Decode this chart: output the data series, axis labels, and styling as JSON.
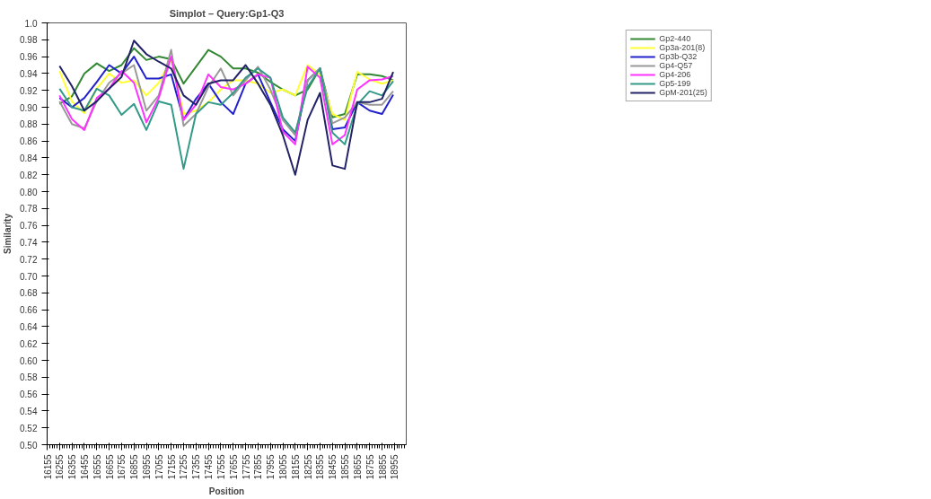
{
  "chart_data": {
    "type": "line",
    "title": "Simplot – Query:Gp1-Q3",
    "xlabel": "Position",
    "ylabel": "Similarity",
    "x": [
      16255,
      16355,
      16455,
      16555,
      16655,
      16755,
      16855,
      16955,
      17055,
      17155,
      17255,
      17355,
      17455,
      17555,
      17655,
      17755,
      17855,
      17955,
      18055,
      18155,
      18255,
      18355,
      18455,
      18555,
      18655,
      18755,
      18855,
      18945
    ],
    "series": [
      {
        "name": "Gp2-440",
        "color": "#338833",
        "values": [
          0.904,
          0.913,
          0.94,
          0.952,
          0.943,
          0.95,
          0.97,
          0.956,
          0.96,
          0.957,
          0.928,
          0.948,
          0.968,
          0.96,
          0.946,
          0.946,
          0.941,
          0.93,
          0.921,
          0.914,
          0.921,
          0.946,
          0.888,
          0.892,
          0.939,
          0.939,
          0.937,
          0.932
        ]
      },
      {
        "name": "Gp3a-201(8)",
        "color": "#ffff33",
        "values": [
          0.943,
          0.907,
          0.893,
          0.922,
          0.94,
          0.929,
          0.932,
          0.914,
          0.929,
          0.957,
          0.892,
          0.896,
          0.906,
          0.921,
          0.932,
          0.932,
          0.928,
          0.917,
          0.921,
          0.914,
          0.95,
          0.939,
          0.892,
          0.885,
          0.942,
          0.933,
          0.928,
          0.932
        ]
      },
      {
        "name": "Gp3b-Q32",
        "color": "#2222cc",
        "values": [
          0.911,
          0.9,
          0.911,
          0.93,
          0.95,
          0.94,
          0.96,
          0.934,
          0.934,
          0.939,
          0.885,
          0.91,
          0.928,
          0.906,
          0.892,
          0.928,
          0.939,
          0.906,
          0.874,
          0.86,
          0.932,
          0.946,
          0.874,
          0.876,
          0.906,
          0.896,
          0.892,
          0.915
        ]
      },
      {
        "name": "Gp4-Q57",
        "color": "#999999",
        "values": [
          0.907,
          0.88,
          0.875,
          0.907,
          0.929,
          0.94,
          0.95,
          0.896,
          0.914,
          0.968,
          0.878,
          0.892,
          0.924,
          0.946,
          0.914,
          0.932,
          0.948,
          0.921,
          0.885,
          0.867,
          0.932,
          0.946,
          0.881,
          0.888,
          0.906,
          0.903,
          0.903,
          0.919
        ]
      },
      {
        "name": "Gp4-206",
        "color": "#ff33ff",
        "values": [
          0.914,
          0.886,
          0.873,
          0.911,
          0.922,
          0.943,
          0.929,
          0.882,
          0.911,
          0.96,
          0.885,
          0.903,
          0.939,
          0.924,
          0.921,
          0.928,
          0.939,
          0.935,
          0.871,
          0.856,
          0.948,
          0.935,
          0.856,
          0.867,
          0.921,
          0.932,
          0.933,
          0.937
        ]
      },
      {
        "name": "Gp5-199",
        "color": "#339988",
        "values": [
          0.922,
          0.9,
          0.896,
          0.922,
          0.914,
          0.891,
          0.904,
          0.873,
          0.907,
          0.903,
          0.827,
          0.892,
          0.906,
          0.903,
          0.917,
          0.935,
          0.946,
          0.935,
          0.888,
          0.87,
          0.924,
          0.946,
          0.87,
          0.856,
          0.903,
          0.919,
          0.914,
          0.931
        ]
      },
      {
        "name": "GpM-201(25)",
        "color": "#222266",
        "values": [
          0.949,
          0.925,
          0.896,
          0.907,
          0.922,
          0.936,
          0.979,
          0.963,
          0.954,
          0.946,
          0.914,
          0.903,
          0.928,
          0.932,
          0.932,
          0.95,
          0.928,
          0.903,
          0.867,
          0.82,
          0.885,
          0.917,
          0.831,
          0.827,
          0.906,
          0.906,
          0.91,
          0.942
        ]
      }
    ],
    "xlim": [
      16155,
      19050
    ],
    "xticks": [
      16155,
      16255,
      16355,
      16455,
      16555,
      16655,
      16755,
      16855,
      16955,
      17055,
      17155,
      17255,
      17355,
      17455,
      17555,
      17655,
      17755,
      17855,
      17955,
      18055,
      18155,
      18255,
      18355,
      18455,
      18555,
      18655,
      18755,
      18855,
      18955
    ],
    "ylim": [
      0.5,
      1.0
    ],
    "yticks": [
      {
        "value": 0.5,
        "label": "0.50"
      },
      {
        "value": 0.52,
        "label": "0.52"
      },
      {
        "value": 0.54,
        "label": "0.54"
      },
      {
        "value": 0.56,
        "label": "0.56"
      },
      {
        "value": 0.58,
        "label": "0.58"
      },
      {
        "value": 0.6,
        "label": "0.60"
      },
      {
        "value": 0.62,
        "label": "0.62"
      },
      {
        "value": 0.64,
        "label": "0.64"
      },
      {
        "value": 0.66,
        "label": "0.66"
      },
      {
        "value": 0.68,
        "label": "0.68"
      },
      {
        "value": 0.7,
        "label": "0.70"
      },
      {
        "value": 0.72,
        "label": "0.72"
      },
      {
        "value": 0.74,
        "label": "0.74"
      },
      {
        "value": 0.76,
        "label": "0.76"
      },
      {
        "value": 0.78,
        "label": "0.78"
      },
      {
        "value": 0.8,
        "label": "0.80"
      },
      {
        "value": 0.82,
        "label": "0.82"
      },
      {
        "value": 0.84,
        "label": "0.84"
      },
      {
        "value": 0.86,
        "label": "0.86"
      },
      {
        "value": 0.88,
        "label": "0.88"
      },
      {
        "value": 0.9,
        "label": "0.90"
      },
      {
        "value": 0.92,
        "label": "0.92"
      },
      {
        "value": 0.94,
        "label": "0.94"
      },
      {
        "value": 0.96,
        "label": "0.96"
      },
      {
        "value": 0.98,
        "label": "0.98"
      },
      {
        "value": 1.0,
        "label": "1.0"
      }
    ],
    "grid": false,
    "legend": "top right",
    "marker": "none",
    "line_style": "solid"
  }
}
